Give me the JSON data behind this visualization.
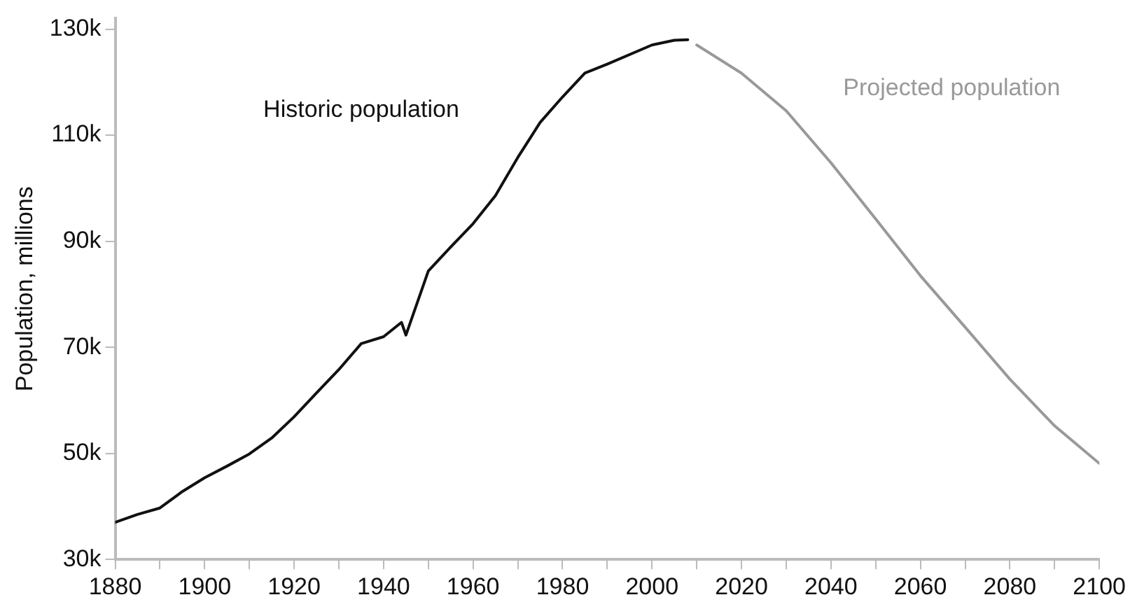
{
  "chart_data": {
    "type": "line",
    "ylabel": "Population, millions",
    "xlim": [
      1880,
      2100
    ],
    "ylim": [
      30000,
      132000
    ],
    "xticks": [
      1880,
      {
        "value": 1890,
        "label": null
      },
      1900,
      {
        "value": 1910,
        "label": null
      },
      1920,
      {
        "value": 1930,
        "label": null
      },
      1940,
      {
        "value": 1950,
        "label": null
      },
      1960,
      {
        "value": 1970,
        "label": null
      },
      1980,
      {
        "value": 1990,
        "label": null
      },
      2000,
      {
        "value": 2010,
        "label": null
      },
      2020,
      {
        "value": 2030,
        "label": null
      },
      2040,
      {
        "value": 2050,
        "label": null
      },
      2060,
      {
        "value": 2070,
        "label": null
      },
      2080,
      {
        "value": 2090,
        "label": null
      },
      2100
    ],
    "yticks": [
      {
        "value": 30000,
        "label": "30k"
      },
      {
        "value": 50000,
        "label": "50k"
      },
      {
        "value": 70000,
        "label": "70k"
      },
      {
        "value": 90000,
        "label": "90k"
      },
      {
        "value": 110000,
        "label": "110k"
      },
      {
        "value": 130000,
        "label": "130k"
      }
    ],
    "grid": false,
    "legend": false,
    "marker": "none",
    "line_style": "solid",
    "series": [
      {
        "name": "Historic population",
        "color": "#111111",
        "x": [
          1880,
          1885,
          1890,
          1895,
          1900,
          1905,
          1910,
          1915,
          1920,
          1925,
          1930,
          1935,
          1940,
          1944,
          1945,
          1950,
          1955,
          1960,
          1965,
          1970,
          1975,
          1980,
          1985,
          1990,
          2000,
          2005,
          2008
        ],
        "values": [
          37000,
          38500,
          39700,
          42800,
          45400,
          47600,
          49900,
          52900,
          56900,
          61400,
          65800,
          70700,
          72000,
          74700,
          72300,
          84400,
          88900,
          93300,
          98600,
          105800,
          112400,
          117200,
          121700,
          123400,
          127000,
          127900,
          128000
        ]
      },
      {
        "name": "Projected population",
        "color": "#999999",
        "x": [
          2010,
          2020,
          2030,
          2040,
          2050,
          2060,
          2070,
          2080,
          2090,
          2100
        ],
        "values": [
          127000,
          121700,
          114600,
          104800,
          94200,
          83500,
          73800,
          64000,
          55200,
          48100
        ]
      }
    ]
  }
}
